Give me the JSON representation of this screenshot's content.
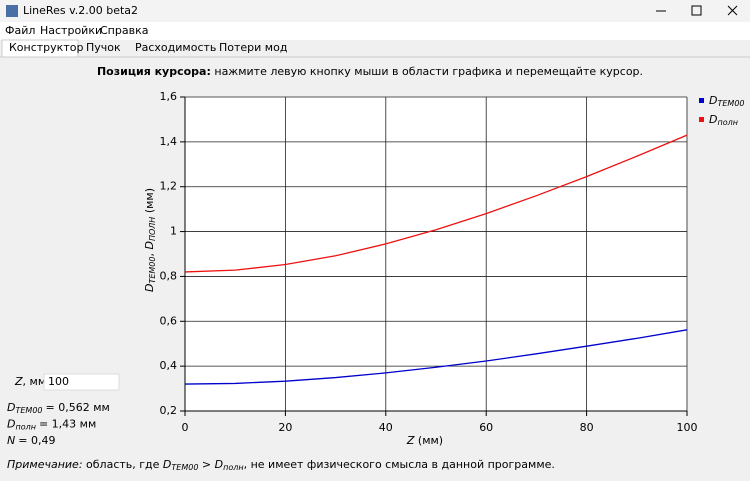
{
  "window": {
    "title": "LineRes v.2.00 beta2"
  },
  "menu": [
    "Файл",
    "Настройки",
    "Справка"
  ],
  "tabs": [
    "Конструктор",
    "Пучок",
    "Расходимость",
    "Потери мод"
  ],
  "cursor_info": {
    "label": "Позиция курсора:",
    "text": "нажмите левую кнопку мыши в области графика и перемещайте курсор."
  },
  "z_input": {
    "symbol": "Z",
    "unit": ", мм",
    "value": "100"
  },
  "results": [
    {
      "symbol": "D",
      "sub": "TEM00",
      "text": "= 0,562 мм"
    },
    {
      "symbol": "D",
      "sub": "полн",
      "text": "= 1,43 мм"
    },
    {
      "symbol": "N",
      "sub": "",
      "text": "= 0,49"
    }
  ],
  "note": {
    "label": "Примечание:",
    "t1": "область, где",
    "d1": "D",
    "s1": "TEM00",
    "gt": ">",
    "d2": "D",
    "s2": "полн",
    "t2": ", не имеет физического смысла в данной программе."
  },
  "chart_data": {
    "type": "line",
    "x_label": {
      "symbol": "Z",
      "text": "(мм)"
    },
    "y_label": {
      "d1": "D",
      "s1": "TEM00",
      "sep": ",",
      "d2": "D",
      "s2": "ПОЛН",
      "unit": "(мм)"
    },
    "x": [
      0,
      10,
      20,
      30,
      40,
      50,
      60,
      70,
      80,
      90,
      100
    ],
    "series": [
      {
        "name": "D",
        "name_sub": "TEM00",
        "color": "#0000cc",
        "values": [
          0.32,
          0.323,
          0.333,
          0.349,
          0.37,
          0.395,
          0.423,
          0.455,
          0.489,
          0.524,
          0.562
        ]
      },
      {
        "name": "D",
        "name_sub": "полн",
        "color": "#ee1111",
        "values": [
          0.82,
          0.828,
          0.853,
          0.892,
          0.945,
          1.008,
          1.08,
          1.16,
          1.245,
          1.336,
          1.43
        ]
      }
    ],
    "xlim": [
      0,
      100
    ],
    "xticks": [
      0,
      20,
      40,
      60,
      80,
      100
    ],
    "ylim": [
      0.2,
      1.6
    ],
    "yticks": [
      {
        "value": 0.2,
        "label": "0,2"
      },
      {
        "value": 0.4,
        "label": "0,4"
      },
      {
        "value": 0.6,
        "label": "0,6"
      },
      {
        "value": 0.8,
        "label": "0,8"
      },
      1,
      {
        "value": 1.2,
        "label": "1,2"
      },
      {
        "value": 1.4,
        "label": "1,4"
      },
      {
        "value": 1.6,
        "label": "1,6"
      }
    ],
    "grid": true,
    "legend": "right"
  }
}
